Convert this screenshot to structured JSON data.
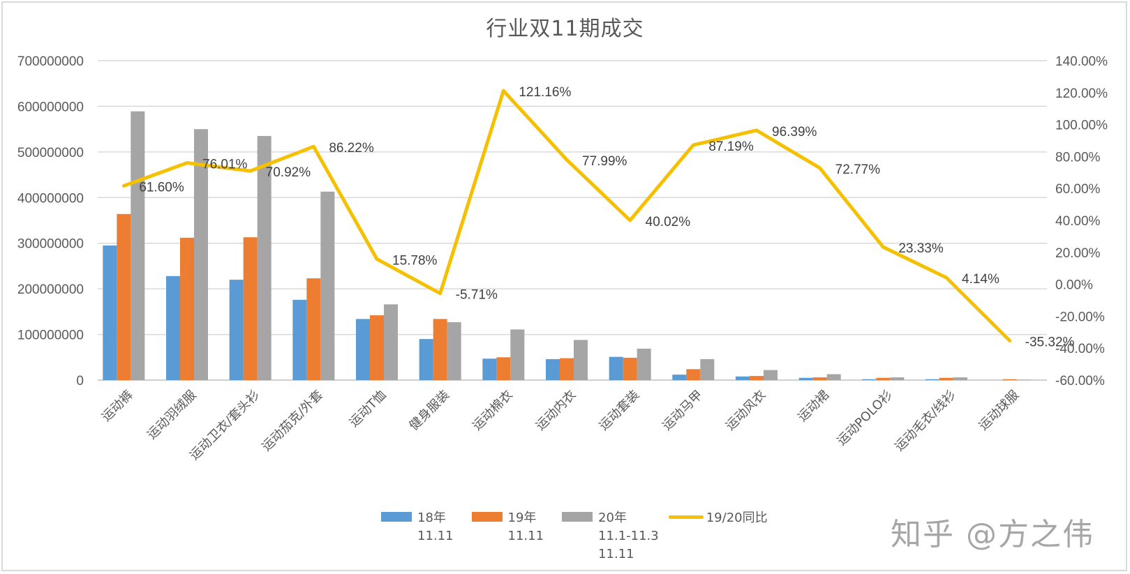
{
  "chart_data": {
    "type": "bar",
    "title": "行业双11期成交",
    "xlabel": "",
    "ylabel": "",
    "ylabel_right": "",
    "ylim": [
      0,
      700000000
    ],
    "ylim_right": [
      -0.6,
      1.4
    ],
    "grid": true,
    "legend_position": "bottom",
    "categories": [
      "运动裤",
      "运动羽绒服",
      "运动卫衣/套头衫",
      "运动茄克/外套",
      "运动T恤",
      "健身服装",
      "运动棉衣",
      "运动内衣",
      "运动套装",
      "运动马甲",
      "运动风衣",
      "运动裙",
      "运动POLO衫",
      "运动毛衣/线衫",
      "运动球服"
    ],
    "series": [
      {
        "name": "18年 11.11",
        "type": "bar",
        "axis": "left",
        "color": "#5b9bd5",
        "values": [
          295000000,
          228000000,
          220000000,
          176000000,
          134000000,
          90000000,
          47000000,
          46000000,
          51000000,
          12000000,
          8000000,
          5000000,
          2000000,
          2000000,
          0
        ]
      },
      {
        "name": "19年 11.11",
        "type": "bar",
        "axis": "left",
        "color": "#ed7d31",
        "values": [
          364000000,
          312000000,
          313000000,
          223000000,
          142000000,
          134000000,
          50000000,
          48000000,
          49000000,
          24000000,
          9000000,
          6000000,
          5000000,
          5000000,
          2000000
        ]
      },
      {
        "name": "20年 11.1-11.3 11.11",
        "type": "bar",
        "axis": "left",
        "color": "#a5a5a5",
        "values": [
          589000000,
          550000000,
          535000000,
          413000000,
          166000000,
          127000000,
          111000000,
          88000000,
          69000000,
          46000000,
          22000000,
          13000000,
          6000000,
          6000000,
          1000000
        ]
      },
      {
        "name": "19/20同比",
        "type": "line",
        "axis": "right",
        "color": "#f5c000",
        "values": [
          0.616,
          0.7601,
          0.7092,
          0.8622,
          0.1578,
          -0.0571,
          1.2116,
          0.7799,
          0.4002,
          0.8719,
          0.9639,
          0.7277,
          0.2333,
          0.0414,
          -0.3532
        ],
        "labels": [
          "61.60%",
          "76.01%",
          "70.92%",
          "86.22%",
          "15.78%",
          "-5.71%",
          "121.16%",
          "77.99%",
          "40.02%",
          "87.19%",
          "96.39%",
          "72.77%",
          "23.33%",
          "4.14%",
          "-35.32%"
        ]
      }
    ],
    "left_ticks": [
      "0",
      "100000000",
      "200000000",
      "300000000",
      "400000000",
      "500000000",
      "600000000",
      "700000000"
    ],
    "right_ticks": [
      "-60.00%",
      "-40.00%",
      "-20.00%",
      "0.00%",
      "20.00%",
      "40.00%",
      "60.00%",
      "80.00%",
      "100.00%",
      "120.00%",
      "140.00%"
    ]
  },
  "legend": {
    "items": [
      {
        "label": "18年\n11.11",
        "color": "#5b9bd5",
        "kind": "bar"
      },
      {
        "label": "19年\n11.11",
        "color": "#ed7d31",
        "kind": "bar"
      },
      {
        "label": "20年\n11.1-11.3\n11.11",
        "color": "#a5a5a5",
        "kind": "bar"
      },
      {
        "label": "19/20同比",
        "color": "#f5c000",
        "kind": "line"
      }
    ]
  },
  "watermark": "知乎 @方之伟"
}
